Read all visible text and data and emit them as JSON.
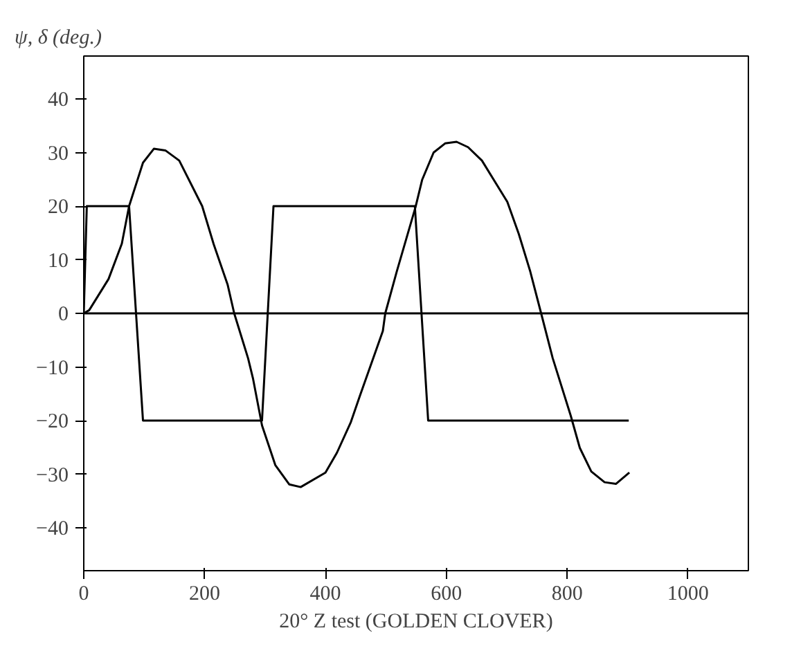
{
  "chart_data": {
    "type": "line",
    "xlabel": "20° Z test (GOLDEN CLOVER)",
    "ylabel": "ψ, δ (deg.)",
    "xlim": [
      0,
      1100
    ],
    "ylim": [
      -48,
      48
    ],
    "xticks": [
      0,
      200,
      400,
      600,
      800,
      1000
    ],
    "yticks": [
      -40,
      -30,
      -20,
      -10,
      0,
      10,
      20,
      30,
      40
    ],
    "grid": false,
    "line_style": "solid",
    "ref_lines": [
      {
        "axis": "y",
        "value": 0,
        "color": "#000000"
      }
    ],
    "series": [
      {
        "color": "#000000",
        "x": [
          0,
          5,
          75,
          98,
          295,
          314,
          548,
          570,
          902
        ],
        "values": [
          0,
          20,
          20,
          -20,
          -20,
          20,
          20,
          -20,
          -20
        ]
      },
      {
        "color": "#000000",
        "x": [
          0,
          9,
          41,
          63,
          75,
          98,
          116,
          135,
          158,
          196,
          215,
          238,
          249,
          272,
          280,
          295,
          317,
          340,
          359,
          400,
          419,
          442,
          457,
          495,
          499,
          518,
          549,
          560,
          579,
          598,
          617,
          636,
          659,
          701,
          720,
          739,
          757,
          776,
          806,
          821,
          840,
          862,
          881,
          903
        ],
        "values": [
          0,
          0.6,
          6.4,
          13,
          20,
          28.1,
          30.7,
          30.4,
          28.5,
          20,
          12.9,
          5.4,
          0,
          -8.4,
          -12.1,
          -20.9,
          -28.3,
          -31.9,
          -32.4,
          -29.7,
          -26,
          -20.3,
          -15.4,
          -3.3,
          0,
          7.8,
          19.8,
          24.9,
          30,
          31.7,
          32,
          31,
          28.5,
          20.8,
          14.8,
          7.8,
          0,
          -8.3,
          -19.1,
          -25.1,
          -29.5,
          -31.5,
          -31.8,
          -29.7
        ]
      }
    ]
  }
}
